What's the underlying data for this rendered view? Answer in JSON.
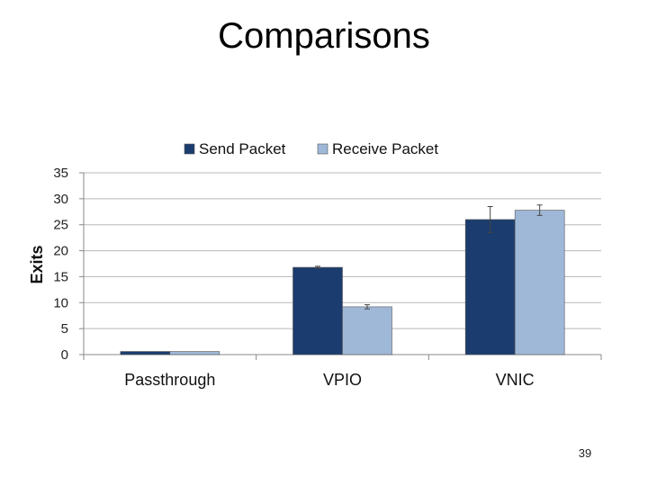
{
  "slide": {
    "title": "Comparisons",
    "page_number": "39"
  },
  "chart_data": {
    "type": "bar",
    "title": "",
    "xlabel": "",
    "ylabel": "Exits",
    "categories": [
      "Passthrough",
      "VPIO",
      "VNIC"
    ],
    "series": [
      {
        "name": "Send Packet",
        "color": "#1b3c6e",
        "values": [
          0.6,
          16.8,
          26.0
        ],
        "errors": [
          0,
          0.2,
          2.5
        ]
      },
      {
        "name": "Receive Packet",
        "color": "#9fb8d8",
        "values": [
          0.6,
          9.2,
          27.8
        ],
        "errors": [
          0,
          0.4,
          1.0
        ]
      }
    ],
    "ylim": [
      0,
      35
    ],
    "yticks": [
      0,
      5,
      10,
      15,
      20,
      25,
      30,
      35
    ],
    "grid": true,
    "legend": "top"
  }
}
